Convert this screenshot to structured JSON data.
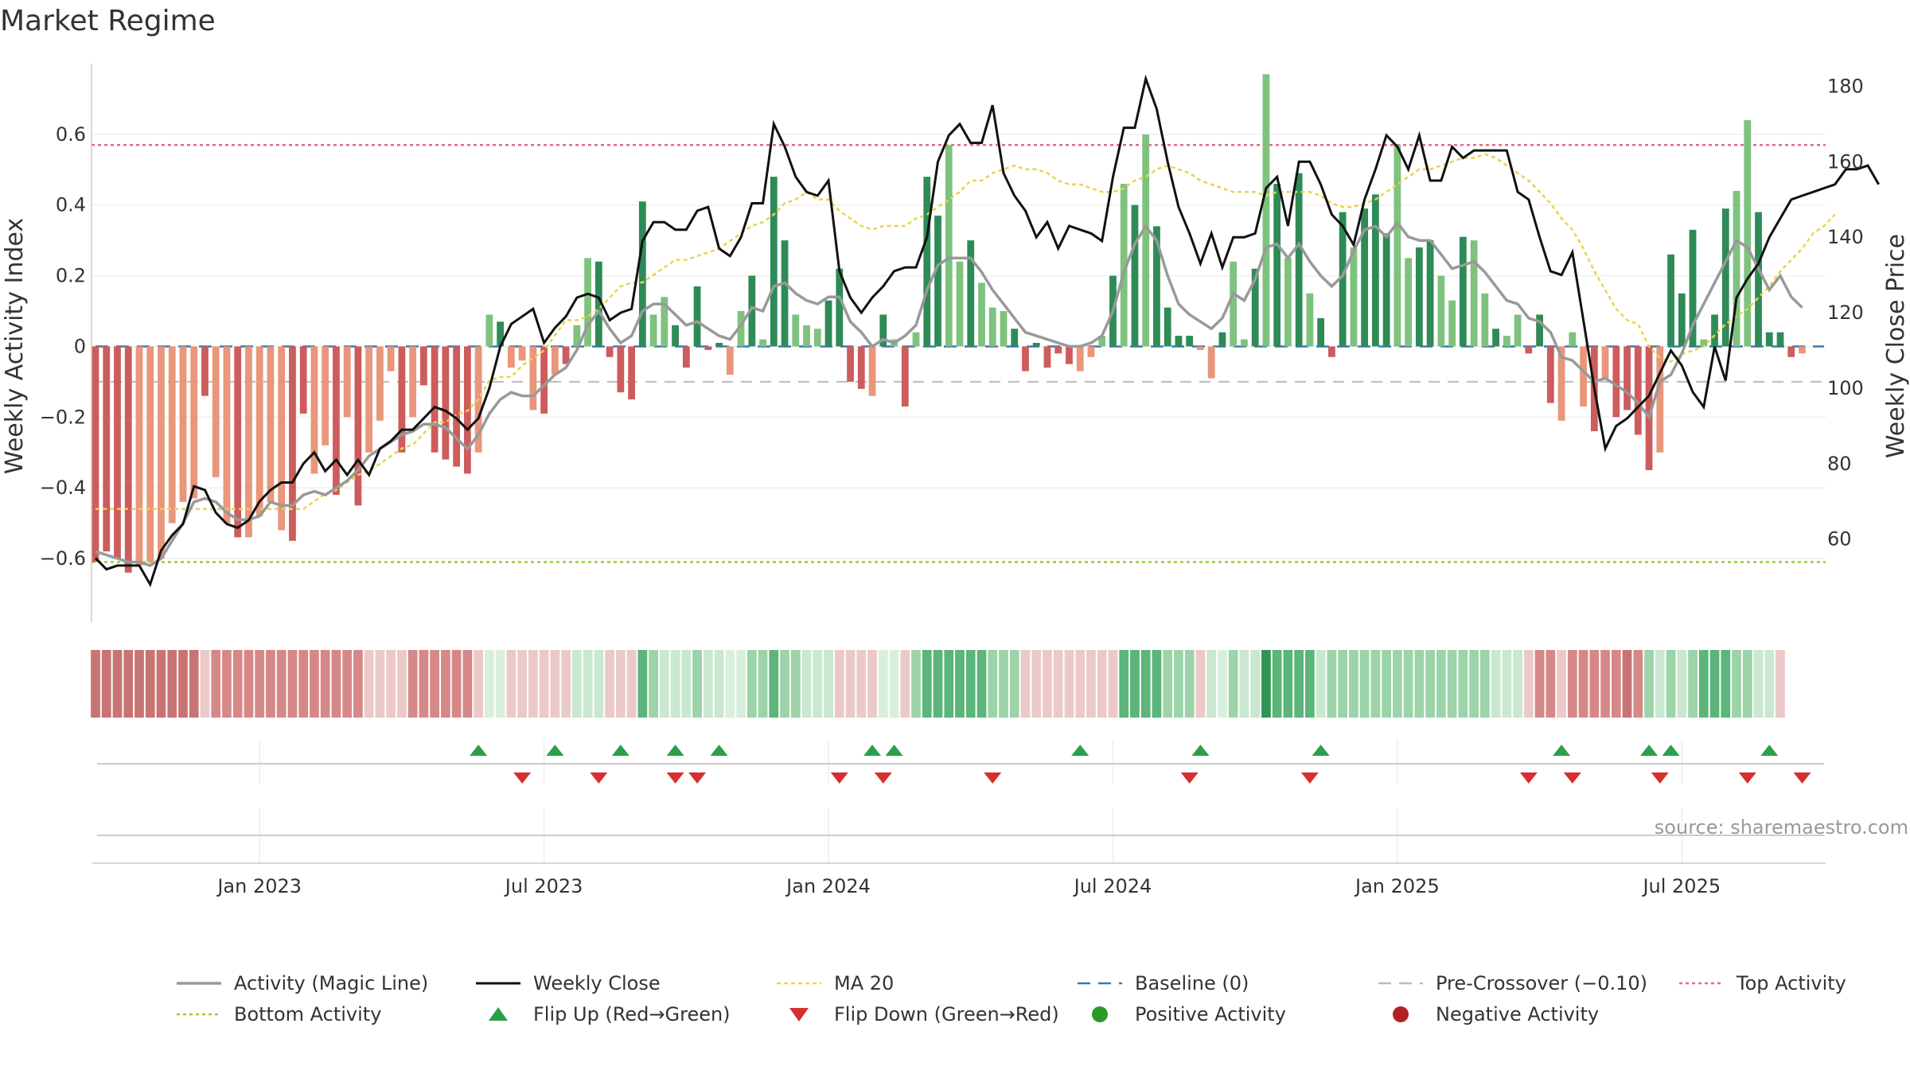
{
  "title": "Market Regime",
  "source": "source: sharemaestro.com",
  "colors": {
    "dark_green": "#2e8b57",
    "light_green": "#7ec27e",
    "dark_red": "#cd5c5c",
    "light_red": "#e9967a",
    "top_line": "#e06c8a",
    "bottom_line": "#9acd32",
    "ma": "#e8d44d",
    "baseline": "#3b78b0",
    "precross": "#bbbbbb",
    "flip_up": "#2aa04a",
    "flip_down": "#d62f2f",
    "pos_dot": "#2a9a2a",
    "neg_dot": "#b22222"
  },
  "chart_data": {
    "type": "bar+line",
    "ylabel_left": "Weekly Activity Index",
    "ylabel_right": "Weekly Close Price",
    "ylim_left": [
      -0.78,
      0.8
    ],
    "ylim_right": [
      38,
      186
    ],
    "yticks_left": [
      {
        "value": 0.6,
        "label": "0.6"
      },
      {
        "value": 0.4,
        "label": "0.4"
      },
      {
        "value": 0.2,
        "label": "0.2"
      },
      {
        "value": 0,
        "label": "0"
      },
      {
        "value": -0.2,
        "label": "−0.2"
      },
      {
        "value": -0.4,
        "label": "−0.4"
      },
      {
        "value": -0.6,
        "label": "−0.6"
      }
    ],
    "yticks_right": [
      {
        "value": 180,
        "label": "180"
      },
      {
        "value": 160,
        "label": "160"
      },
      {
        "value": 140,
        "label": "140"
      },
      {
        "value": 120,
        "label": "120"
      },
      {
        "value": 100,
        "label": "100"
      },
      {
        "value": 80,
        "label": "80"
      },
      {
        "value": 60,
        "label": "60"
      }
    ],
    "x_start_week": 0,
    "x_end_week": 158,
    "xticks": [
      {
        "week": 15,
        "label": "Jan 2023"
      },
      {
        "week": 41,
        "label": "Jul 2023"
      },
      {
        "week": 67,
        "label": "Jan 2024"
      },
      {
        "week": 93,
        "label": "Jul 2024"
      },
      {
        "week": 119,
        "label": "Jan 2025"
      },
      {
        "week": 145,
        "label": "Jul 2025"
      }
    ],
    "reference_lines": {
      "top_activity": 0.57,
      "bottom_activity": -0.61,
      "baseline": 0,
      "pre_crossover": -0.1
    },
    "activity": [
      -0.61,
      -0.58,
      -0.6,
      -0.64,
      -0.62,
      -0.61,
      -0.6,
      -0.5,
      -0.44,
      -0.43,
      -0.14,
      -0.37,
      -0.5,
      -0.54,
      -0.54,
      -0.48,
      -0.44,
      -0.52,
      -0.55,
      -0.19,
      -0.36,
      -0.28,
      -0.42,
      -0.2,
      -0.45,
      -0.3,
      -0.21,
      -0.07,
      -0.3,
      -0.2,
      -0.11,
      -0.3,
      -0.32,
      -0.34,
      -0.36,
      -0.3,
      0.09,
      0.07,
      -0.06,
      -0.04,
      -0.18,
      -0.19,
      -0.08,
      -0.05,
      0.06,
      0.25,
      0.24,
      -0.03,
      -0.13,
      -0.15,
      0.41,
      0.09,
      0.14,
      0.06,
      -0.06,
      0.17,
      -0.01,
      0.01,
      -0.08,
      0.1,
      0.2,
      0.02,
      0.48,
      0.3,
      0.09,
      0.06,
      0.05,
      0.13,
      0.22,
      -0.1,
      -0.12,
      -0.14,
      0.09,
      0.02,
      -0.17,
      0.04,
      0.48,
      0.37,
      0.57,
      0.24,
      0.3,
      0.18,
      0.11,
      0.1,
      0.05,
      -0.07,
      0.01,
      -0.06,
      -0.02,
      -0.05,
      -0.07,
      -0.03,
      0.03,
      0.2,
      0.46,
      0.4,
      0.6,
      0.34,
      0.11,
      0.03,
      0.03,
      -0.01,
      -0.09,
      0.04,
      0.24,
      0.02,
      0.22,
      0.77,
      0.46,
      0.25,
      0.49,
      0.15,
      0.08,
      -0.03,
      0.38,
      0.28,
      0.39,
      0.43,
      0.32,
      0.57,
      0.25,
      0.28,
      0.3,
      0.2,
      0.13,
      0.31,
      0.3,
      0.15,
      0.05,
      0.03,
      0.09,
      -0.02,
      0.09,
      -0.16,
      -0.21,
      0.04,
      -0.17,
      -0.24,
      -0.09,
      -0.2,
      -0.18,
      -0.25,
      -0.35,
      -0.3,
      0.26,
      0.15,
      0.33,
      0.02,
      0.09,
      0.39,
      0.44,
      0.64,
      0.38,
      0.04,
      0.04,
      -0.03,
      -0.02
    ],
    "bar_shades": "ddddlllllldlldllllddlldldllldldddddlldllldldlldddddlldddddlldlddlllddddldldlddlldlllddddddllldldlddddlldlldldldldddldddllddlldlldlldddllldlddddldddlddlldddd",
    "magic_line": [
      -0.58,
      -0.59,
      -0.6,
      -0.61,
      -0.61,
      -0.62,
      -0.6,
      -0.55,
      -0.5,
      -0.44,
      -0.43,
      -0.44,
      -0.47,
      -0.49,
      -0.49,
      -0.48,
      -0.44,
      -0.45,
      -0.45,
      -0.42,
      -0.41,
      -0.42,
      -0.4,
      -0.38,
      -0.35,
      -0.31,
      -0.29,
      -0.27,
      -0.25,
      -0.24,
      -0.22,
      -0.22,
      -0.23,
      -0.26,
      -0.29,
      -0.25,
      -0.19,
      -0.15,
      -0.13,
      -0.14,
      -0.14,
      -0.11,
      -0.08,
      -0.06,
      -0.01,
      0.06,
      0.1,
      0.05,
      0.01,
      0.03,
      0.1,
      0.12,
      0.12,
      0.09,
      0.06,
      0.07,
      0.05,
      0.03,
      0.02,
      0.06,
      0.11,
      0.1,
      0.17,
      0.18,
      0.15,
      0.13,
      0.12,
      0.14,
      0.14,
      0.07,
      0.04,
      0.0,
      0.02,
      0.01,
      0.03,
      0.06,
      0.16,
      0.23,
      0.25,
      0.25,
      0.25,
      0.21,
      0.16,
      0.12,
      0.08,
      0.04,
      0.03,
      0.02,
      0.01,
      0.0,
      0.0,
      0.01,
      0.03,
      0.1,
      0.21,
      0.29,
      0.34,
      0.3,
      0.2,
      0.12,
      0.09,
      0.07,
      0.05,
      0.08,
      0.15,
      0.13,
      0.19,
      0.28,
      0.29,
      0.25,
      0.29,
      0.24,
      0.2,
      0.17,
      0.2,
      0.27,
      0.33,
      0.34,
      0.31,
      0.35,
      0.31,
      0.3,
      0.3,
      0.26,
      0.22,
      0.23,
      0.24,
      0.21,
      0.17,
      0.13,
      0.12,
      0.08,
      0.07,
      0.04,
      -0.03,
      -0.04,
      -0.07,
      -0.1,
      -0.09,
      -0.11,
      -0.13,
      -0.16,
      -0.2,
      -0.1,
      -0.08,
      -0.02,
      0.06,
      0.12,
      0.18,
      0.24,
      0.3,
      0.28,
      0.22,
      0.16,
      0.2,
      0.14,
      0.11
    ],
    "weekly_close": [
      55,
      52,
      53,
      53,
      53,
      48,
      57,
      61,
      64,
      74,
      73,
      67,
      64,
      63,
      65,
      70,
      73,
      75,
      75,
      80,
      83,
      78,
      81,
      77,
      81,
      77,
      84,
      86,
      89,
      89,
      92,
      95,
      94,
      92,
      89,
      92,
      100,
      111,
      117,
      119,
      121,
      112,
      116,
      119,
      124,
      125,
      124,
      118,
      120,
      121,
      139,
      144,
      144,
      142,
      142,
      147,
      148,
      137,
      135,
      140,
      149,
      149,
      170,
      164,
      156,
      152,
      151,
      155,
      131,
      124,
      120,
      124,
      127,
      131,
      132,
      132,
      140,
      160,
      167,
      170,
      165,
      165,
      175,
      157,
      151,
      147,
      140,
      144,
      137,
      143,
      142,
      141,
      139,
      156,
      169,
      169,
      182,
      174,
      160,
      148,
      141,
      133,
      141,
      132,
      140,
      140,
      141,
      153,
      156,
      143,
      160,
      160,
      154,
      146,
      143,
      138,
      150,
      158,
      167,
      164,
      158,
      167,
      155,
      155,
      164,
      161,
      163,
      163,
      163,
      163,
      152,
      150,
      140,
      131,
      130,
      136,
      118,
      100,
      84,
      90,
      92,
      95,
      98,
      104,
      110,
      106,
      99,
      95,
      111,
      102,
      124,
      129,
      133,
      140,
      145,
      150,
      151,
      152,
      153,
      154,
      158,
      158,
      159,
      154
    ],
    "ma20": [
      68,
      68,
      68,
      68,
      68,
      68,
      68,
      68,
      68,
      68,
      68,
      68,
      68,
      68,
      68,
      68,
      68,
      68,
      68,
      68,
      70,
      72,
      73,
      75,
      77,
      78,
      80,
      82,
      84,
      85,
      88,
      91,
      91,
      93,
      94,
      97,
      102,
      103,
      103,
      106,
      108,
      110,
      114,
      118,
      118,
      119,
      121,
      124,
      127,
      128,
      128,
      130,
      132,
      134,
      134,
      135,
      136,
      137,
      139,
      141,
      143,
      144,
      146,
      149,
      150,
      152,
      150,
      150,
      147,
      145,
      143,
      142,
      143,
      143,
      143,
      145,
      146,
      148,
      150,
      152,
      155,
      155,
      157,
      158,
      159,
      158,
      158,
      157,
      155,
      154,
      154,
      153,
      152,
      152,
      153,
      155,
      156,
      158,
      159,
      158,
      157,
      155,
      154,
      153,
      152,
      152,
      152,
      151,
      152,
      152,
      152,
      152,
      151,
      149,
      148,
      148,
      149,
      150,
      152,
      154,
      156,
      158,
      158,
      159,
      160,
      161,
      161,
      162,
      161,
      159,
      157,
      155,
      152,
      149,
      145,
      142,
      137,
      131,
      126,
      121,
      118,
      117,
      111,
      108,
      107,
      109,
      110,
      111,
      114,
      117,
      119,
      121,
      124,
      127,
      131,
      134,
      137,
      141,
      143,
      146
    ],
    "flip_up_weeks": [
      35,
      42,
      48,
      53,
      57,
      71,
      73,
      90,
      101,
      112,
      134,
      142,
      144,
      153
    ],
    "flip_down_weeks": [
      39,
      46,
      53,
      55,
      68,
      72,
      82,
      100,
      111,
      131,
      135,
      143,
      151,
      156
    ],
    "regime_strip": [
      "R1",
      "R1",
      "R1",
      "R1",
      "R1",
      "R1",
      "R1",
      "R1",
      "R1",
      "R1",
      "R3",
      "R2",
      "R2",
      "R2",
      "R2",
      "R2",
      "R2",
      "R2",
      "R2",
      "R2",
      "R2",
      "R2",
      "R2",
      "R2",
      "R2",
      "R3",
      "R3",
      "R3",
      "R3",
      "R2",
      "R2",
      "R2",
      "R2",
      "R2",
      "R2",
      "R3",
      "G5",
      "G5",
      "R3",
      "R3",
      "R3",
      "R3",
      "R3",
      "R3",
      "G4",
      "G4",
      "G4",
      "R3",
      "R3",
      "R3",
      "G2",
      "G3",
      "G4",
      "G4",
      "G4",
      "G3",
      "G4",
      "G4",
      "G5",
      "G5",
      "G3",
      "G3",
      "G2",
      "G3",
      "G3",
      "G4",
      "G4",
      "G4",
      "R3",
      "R3",
      "R3",
      "R3",
      "G5",
      "G5",
      "R3",
      "G3",
      "G2",
      "G2",
      "G2",
      "G2",
      "G2",
      "G2",
      "G3",
      "G3",
      "G3",
      "R3",
      "R3",
      "R3",
      "R3",
      "R3",
      "R3",
      "R3",
      "R3",
      "R3",
      "G2",
      "G2",
      "G2",
      "G2",
      "G3",
      "G3",
      "G3",
      "R3",
      "G4",
      "G5",
      "G3",
      "G4",
      "G4",
      "G1",
      "G2",
      "G2",
      "G2",
      "G2",
      "G4",
      "G3",
      "G3",
      "G3",
      "G3",
      "G3",
      "G3",
      "G3",
      "G3",
      "G3",
      "G3",
      "G3",
      "G3",
      "G3",
      "G3",
      "G3",
      "G4",
      "G4",
      "G4",
      "R3",
      "R2",
      "R2",
      "R3",
      "R2",
      "R2",
      "R2",
      "R2",
      "R2",
      "R1",
      "R2",
      "G3",
      "G4",
      "G3",
      "G4",
      "G3",
      "G2",
      "G2",
      "G2",
      "G3",
      "G3",
      "G4",
      "G4",
      "R3"
    ]
  },
  "legend": {
    "items": [
      {
        "kind": "line-solid-gray",
        "label": "Activity (Magic Line)"
      },
      {
        "kind": "line-solid-black",
        "label": "Weekly Close"
      },
      {
        "kind": "line-dotted-yellow",
        "label": "MA 20"
      },
      {
        "kind": "line-dashed-blue",
        "label": "Baseline (0)"
      },
      {
        "kind": "line-dashed-gray",
        "label": "Pre-Crossover (−0.10)"
      },
      {
        "kind": "line-dotted-red",
        "label": "Top Activity"
      },
      {
        "kind": "line-dotted-green",
        "label": "Bottom Activity"
      },
      {
        "kind": "triangle-up",
        "label": "Flip Up (Red→Green)"
      },
      {
        "kind": "triangle-down",
        "label": "Flip Down (Green→Red)"
      },
      {
        "kind": "dot-green",
        "label": "Positive Activity"
      },
      {
        "kind": "dot-red",
        "label": "Negative Activity"
      }
    ]
  }
}
